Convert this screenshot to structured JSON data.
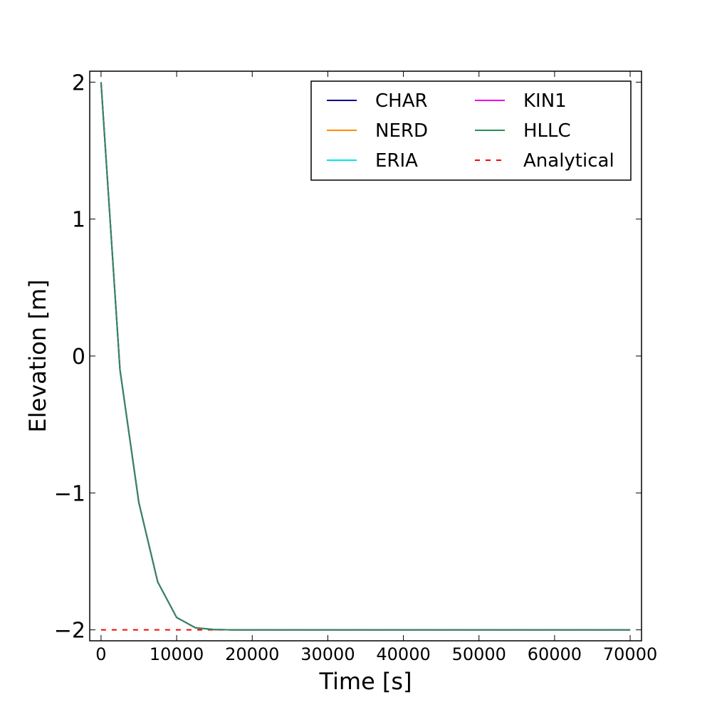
{
  "chart_data": {
    "type": "line",
    "title": "",
    "xlabel": "Time [s]",
    "ylabel": "Elevation [m]",
    "xlim": [
      -1500,
      71500
    ],
    "ylim": [
      -2.08,
      2.08
    ],
    "xticks": [
      0,
      10000,
      20000,
      30000,
      40000,
      50000,
      60000,
      70000
    ],
    "xtick_labels": [
      "0",
      "10000",
      "20000",
      "30000",
      "40000",
      "50000",
      "60000",
      "70000"
    ],
    "yticks": [
      2,
      1,
      0,
      -1,
      -2
    ],
    "ytick_labels": [
      "2",
      "1",
      "0",
      "−1",
      "−2"
    ],
    "grid": false,
    "legend_position": "top-right",
    "legend_columns": 2,
    "x": [
      0,
      2500,
      5000,
      7500,
      10000,
      12500,
      15000,
      17500,
      20000,
      25000,
      30000,
      40000,
      50000,
      60000,
      70000
    ],
    "series": [
      {
        "name": "CHAR",
        "color": "#00008b",
        "dash": "solid",
        "values": [
          2.0,
          -0.1,
          -1.07,
          -1.65,
          -1.91,
          -1.985,
          -1.998,
          -2.0,
          -2.0,
          -2.0,
          -2.0,
          -2.0,
          -2.0,
          -2.0,
          -2.0
        ]
      },
      {
        "name": "NERD",
        "color": "#ff8c00",
        "dash": "solid",
        "values": [
          2.0,
          -0.1,
          -1.07,
          -1.65,
          -1.91,
          -1.985,
          -1.998,
          -2.0,
          -2.0,
          -2.0,
          -2.0,
          -2.0,
          -2.0,
          -2.0,
          -2.0
        ]
      },
      {
        "name": "ERIA",
        "color": "#00e5ee",
        "dash": "solid",
        "values": [
          2.0,
          -0.1,
          -1.07,
          -1.65,
          -1.91,
          -1.985,
          -1.998,
          -2.0,
          -2.0,
          -2.0,
          -2.0,
          -2.0,
          -2.0,
          -2.0,
          -2.0
        ]
      },
      {
        "name": "KIN1",
        "color": "#ee00ee",
        "dash": "solid",
        "values": [
          2.0,
          -0.1,
          -1.07,
          -1.65,
          -1.91,
          -1.985,
          -1.998,
          -2.0,
          -2.0,
          -2.0,
          -2.0,
          -2.0,
          -2.0,
          -2.0,
          -2.0
        ]
      },
      {
        "name": "HLLC",
        "color": "#2e8b57",
        "dash": "solid",
        "values": [
          2.0,
          -0.1,
          -1.07,
          -1.65,
          -1.91,
          -1.985,
          -1.998,
          -2.0,
          -2.0,
          -2.0,
          -2.0,
          -2.0,
          -2.0,
          -2.0,
          -2.0
        ]
      },
      {
        "name": "Analytical",
        "color": "#ff0000",
        "dash": "dashed",
        "values": [
          -2.0,
          -2.0,
          -2.0,
          -2.0,
          -2.0,
          -2.0,
          -2.0,
          -2.0,
          -2.0,
          -2.0,
          -2.0,
          -2.0,
          -2.0,
          -2.0,
          -2.0
        ]
      }
    ]
  }
}
